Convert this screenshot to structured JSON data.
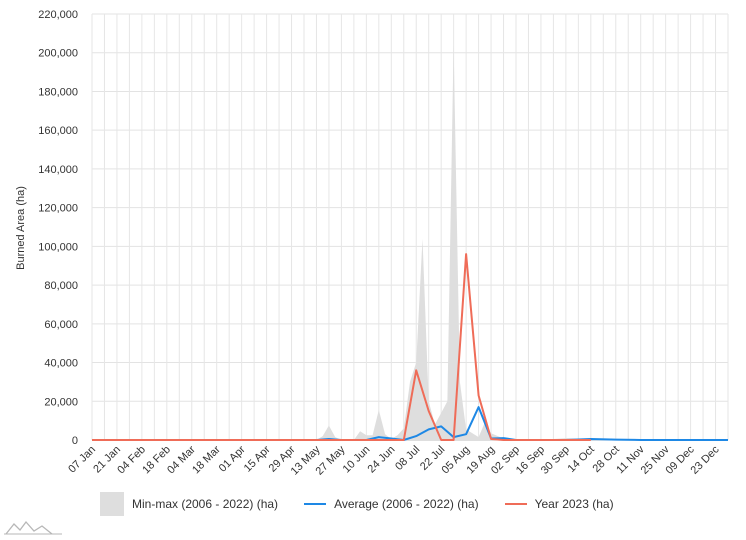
{
  "chart_data": {
    "type": "area",
    "ylabel": "Burned Area (ha)",
    "xlabel": "",
    "ylim": [
      0,
      220000
    ],
    "yticks": [
      0,
      20000,
      40000,
      60000,
      80000,
      100000,
      120000,
      140000,
      160000,
      180000,
      200000,
      220000
    ],
    "ytick_labels": [
      "0",
      "20,000",
      "40,000",
      "60,000",
      "80,000",
      "100,000",
      "120,000",
      "140,000",
      "160,000",
      "180,000",
      "200,000",
      "220,000"
    ],
    "categories": [
      "07 Jan",
      "21 Jan",
      "04 Feb",
      "18 Feb",
      "04 Mar",
      "18 Mar",
      "01 Apr",
      "15 Apr",
      "29 Apr",
      "13 May",
      "27 May",
      "10 Jun",
      "24 Jun",
      "08 Jul",
      "22 Jul",
      "05 Aug",
      "19 Aug",
      "02 Sep",
      "16 Sep",
      "30 Sep",
      "14 Oct",
      "28 Oct",
      "11 Nov",
      "25 Nov",
      "09 Dec",
      "23 Dec"
    ],
    "grid": true,
    "legend_position": "bottom",
    "series": [
      {
        "name": "Min-max (2006 - 2022) (ha)",
        "type": "range-area",
        "color": "#dedede",
        "x": [
          0,
          18,
          18.5,
          19,
          19.5,
          20,
          21,
          21.5,
          22,
          22.5,
          23,
          23.5,
          24,
          24.5,
          25,
          25.5,
          26,
          26.5,
          27,
          27.5,
          28,
          28.5,
          29,
          29.5,
          30,
          30.5,
          31,
          31.5,
          32,
          33,
          33.5,
          34,
          35,
          36,
          37,
          38,
          40,
          42,
          44,
          46,
          48,
          50,
          51
        ],
        "high": [
          0,
          0,
          2000,
          7500,
          1500,
          0,
          0,
          4500,
          2500,
          2500,
          15500,
          3000,
          500,
          2500,
          6000,
          30000,
          40000,
          104000,
          20000,
          8000,
          14000,
          20000,
          204000,
          30000,
          5500,
          3500,
          1500,
          9000,
          3500,
          800,
          400,
          300,
          200,
          200,
          500,
          1000,
          500,
          300,
          200,
          200,
          200,
          200,
          200
        ],
        "low": [
          0,
          0,
          0,
          0,
          0,
          0,
          0,
          0,
          0,
          0,
          0,
          0,
          0,
          0,
          0,
          0,
          0,
          0,
          0,
          0,
          0,
          0,
          0,
          0,
          0,
          0,
          0,
          0,
          0,
          0,
          0,
          0,
          0,
          0,
          0,
          0,
          0,
          0,
          0,
          0,
          0,
          0,
          0
        ]
      },
      {
        "name": "Average (2006 - 2022) (ha)",
        "type": "line",
        "color": "#1e88e5",
        "x": [
          0,
          18,
          19,
          20,
          21,
          22,
          23,
          24,
          25,
          26,
          27,
          28,
          29,
          30,
          31,
          32,
          33,
          34,
          35,
          36,
          37,
          38,
          40,
          42,
          44,
          46,
          48,
          50,
          51
        ],
        "values": [
          0,
          0,
          500,
          0,
          0,
          0,
          1500,
          800,
          0,
          2000,
          5500,
          7000,
          1500,
          3000,
          17000,
          800,
          1000,
          0,
          0,
          0,
          0,
          0,
          500,
          200,
          0,
          0,
          0,
          0,
          0
        ]
      },
      {
        "name": "Year 2023 (ha)",
        "type": "line",
        "color": "#ef6c58",
        "x": [
          0,
          18,
          19,
          20,
          21,
          22,
          23,
          24,
          25,
          26,
          27,
          28,
          29,
          30,
          31,
          32,
          33,
          34,
          35,
          36,
          37,
          38,
          39,
          40
        ],
        "values": [
          0,
          0,
          0,
          0,
          0,
          0,
          0,
          0,
          0,
          36000,
          15000,
          0,
          0,
          96000,
          23000,
          500,
          0,
          0,
          0,
          0,
          0,
          0,
          0,
          0
        ]
      }
    ]
  }
}
